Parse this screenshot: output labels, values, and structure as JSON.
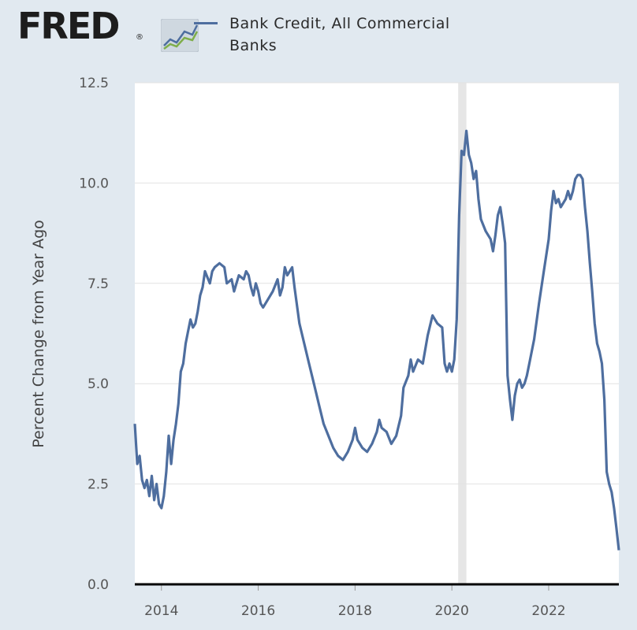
{
  "logo": {
    "text": "FRED",
    "mark": "®",
    "icon": "trend-chart-icon"
  },
  "colors": {
    "series": "#4e6e9f",
    "background": "#e1e9f0",
    "plot": "#ffffff",
    "recession": "#e6e6e6"
  },
  "chart_data": {
    "type": "line",
    "title": "",
    "xlabel": "",
    "ylabel": "Percent Change from Year Ago",
    "ylim": [
      0,
      12.5
    ],
    "xlim": [
      2013.45,
      2023.45
    ],
    "yticks": [
      "0.0",
      "2.5",
      "5.0",
      "7.5",
      "10.0",
      "12.5"
    ],
    "xticks": [
      "2014",
      "2016",
      "2018",
      "2020",
      "2022"
    ],
    "grid": true,
    "legend_position": "top",
    "recession_shading": [
      [
        2020.13,
        2020.3
      ]
    ],
    "series": [
      {
        "name": "Bank Credit, All Commercial Banks",
        "points": [
          [
            2013.45,
            4.0
          ],
          [
            2013.5,
            3.0
          ],
          [
            2013.55,
            3.2
          ],
          [
            2013.6,
            2.6
          ],
          [
            2013.65,
            2.4
          ],
          [
            2013.7,
            2.6
          ],
          [
            2013.75,
            2.2
          ],
          [
            2013.8,
            2.7
          ],
          [
            2013.85,
            2.1
          ],
          [
            2013.9,
            2.5
          ],
          [
            2013.95,
            2.0
          ],
          [
            2014.0,
            1.9
          ],
          [
            2014.05,
            2.2
          ],
          [
            2014.1,
            2.8
          ],
          [
            2014.15,
            3.7
          ],
          [
            2014.2,
            3.0
          ],
          [
            2014.25,
            3.6
          ],
          [
            2014.3,
            4.0
          ],
          [
            2014.35,
            4.5
          ],
          [
            2014.4,
            5.3
          ],
          [
            2014.45,
            5.5
          ],
          [
            2014.5,
            6.0
          ],
          [
            2014.55,
            6.3
          ],
          [
            2014.6,
            6.6
          ],
          [
            2014.65,
            6.4
          ],
          [
            2014.7,
            6.5
          ],
          [
            2014.75,
            6.8
          ],
          [
            2014.8,
            7.2
          ],
          [
            2014.85,
            7.4
          ],
          [
            2014.9,
            7.8
          ],
          [
            2015.0,
            7.5
          ],
          [
            2015.05,
            7.8
          ],
          [
            2015.1,
            7.9
          ],
          [
            2015.2,
            8.0
          ],
          [
            2015.3,
            7.9
          ],
          [
            2015.35,
            7.5
          ],
          [
            2015.45,
            7.6
          ],
          [
            2015.5,
            7.3
          ],
          [
            2015.6,
            7.7
          ],
          [
            2015.7,
            7.6
          ],
          [
            2015.75,
            7.8
          ],
          [
            2015.8,
            7.7
          ],
          [
            2015.85,
            7.4
          ],
          [
            2015.9,
            7.2
          ],
          [
            2015.95,
            7.5
          ],
          [
            2016.0,
            7.3
          ],
          [
            2016.05,
            7.0
          ],
          [
            2016.1,
            6.9
          ],
          [
            2016.2,
            7.1
          ],
          [
            2016.3,
            7.3
          ],
          [
            2016.4,
            7.6
          ],
          [
            2016.45,
            7.2
          ],
          [
            2016.5,
            7.4
          ],
          [
            2016.55,
            7.9
          ],
          [
            2016.6,
            7.7
          ],
          [
            2016.7,
            7.9
          ],
          [
            2016.75,
            7.4
          ],
          [
            2016.85,
            6.5
          ],
          [
            2016.95,
            6.0
          ],
          [
            2017.05,
            5.5
          ],
          [
            2017.15,
            5.0
          ],
          [
            2017.25,
            4.5
          ],
          [
            2017.35,
            4.0
          ],
          [
            2017.45,
            3.7
          ],
          [
            2017.55,
            3.4
          ],
          [
            2017.65,
            3.2
          ],
          [
            2017.75,
            3.1
          ],
          [
            2017.85,
            3.3
          ],
          [
            2017.95,
            3.6
          ],
          [
            2018.0,
            3.9
          ],
          [
            2018.05,
            3.6
          ],
          [
            2018.15,
            3.4
          ],
          [
            2018.25,
            3.3
          ],
          [
            2018.35,
            3.5
          ],
          [
            2018.45,
            3.8
          ],
          [
            2018.5,
            4.1
          ],
          [
            2018.55,
            3.9
          ],
          [
            2018.65,
            3.8
          ],
          [
            2018.75,
            3.5
          ],
          [
            2018.85,
            3.7
          ],
          [
            2018.95,
            4.2
          ],
          [
            2019.0,
            4.9
          ],
          [
            2019.1,
            5.2
          ],
          [
            2019.15,
            5.6
          ],
          [
            2019.2,
            5.3
          ],
          [
            2019.3,
            5.6
          ],
          [
            2019.4,
            5.5
          ],
          [
            2019.5,
            6.2
          ],
          [
            2019.6,
            6.7
          ],
          [
            2019.7,
            6.5
          ],
          [
            2019.8,
            6.4
          ],
          [
            2019.85,
            5.5
          ],
          [
            2019.9,
            5.3
          ],
          [
            2019.95,
            5.5
          ],
          [
            2020.0,
            5.3
          ],
          [
            2020.05,
            5.6
          ],
          [
            2020.1,
            6.6
          ],
          [
            2020.15,
            9.2
          ],
          [
            2020.2,
            10.8
          ],
          [
            2020.25,
            10.7
          ],
          [
            2020.3,
            11.3
          ],
          [
            2020.35,
            10.7
          ],
          [
            2020.4,
            10.5
          ],
          [
            2020.45,
            10.1
          ],
          [
            2020.5,
            10.3
          ],
          [
            2020.55,
            9.6
          ],
          [
            2020.6,
            9.1
          ],
          [
            2020.7,
            8.8
          ],
          [
            2020.8,
            8.6
          ],
          [
            2020.85,
            8.3
          ],
          [
            2020.9,
            8.7
          ],
          [
            2020.95,
            9.2
          ],
          [
            2021.0,
            9.4
          ],
          [
            2021.05,
            9.0
          ],
          [
            2021.1,
            8.5
          ],
          [
            2021.15,
            5.2
          ],
          [
            2021.2,
            4.6
          ],
          [
            2021.25,
            4.1
          ],
          [
            2021.3,
            4.7
          ],
          [
            2021.35,
            5.0
          ],
          [
            2021.4,
            5.1
          ],
          [
            2021.45,
            4.9
          ],
          [
            2021.5,
            5.0
          ],
          [
            2021.55,
            5.2
          ],
          [
            2021.6,
            5.5
          ],
          [
            2021.7,
            6.1
          ],
          [
            2021.8,
            7.0
          ],
          [
            2021.9,
            7.8
          ],
          [
            2022.0,
            8.6
          ],
          [
            2022.05,
            9.3
          ],
          [
            2022.1,
            9.8
          ],
          [
            2022.15,
            9.5
          ],
          [
            2022.2,
            9.6
          ],
          [
            2022.25,
            9.4
          ],
          [
            2022.3,
            9.5
          ],
          [
            2022.35,
            9.6
          ],
          [
            2022.4,
            9.8
          ],
          [
            2022.45,
            9.6
          ],
          [
            2022.5,
            9.8
          ],
          [
            2022.55,
            10.1
          ],
          [
            2022.6,
            10.2
          ],
          [
            2022.65,
            10.2
          ],
          [
            2022.7,
            10.1
          ],
          [
            2022.75,
            9.4
          ],
          [
            2022.8,
            8.8
          ],
          [
            2022.85,
            8.0
          ],
          [
            2022.9,
            7.3
          ],
          [
            2022.95,
            6.5
          ],
          [
            2023.0,
            6.0
          ],
          [
            2023.05,
            5.8
          ],
          [
            2023.1,
            5.5
          ],
          [
            2023.15,
            4.6
          ],
          [
            2023.2,
            2.8
          ],
          [
            2023.25,
            2.5
          ],
          [
            2023.3,
            2.3
          ],
          [
            2023.35,
            1.9
          ],
          [
            2023.4,
            1.4
          ],
          [
            2023.45,
            0.85
          ]
        ]
      }
    ]
  }
}
